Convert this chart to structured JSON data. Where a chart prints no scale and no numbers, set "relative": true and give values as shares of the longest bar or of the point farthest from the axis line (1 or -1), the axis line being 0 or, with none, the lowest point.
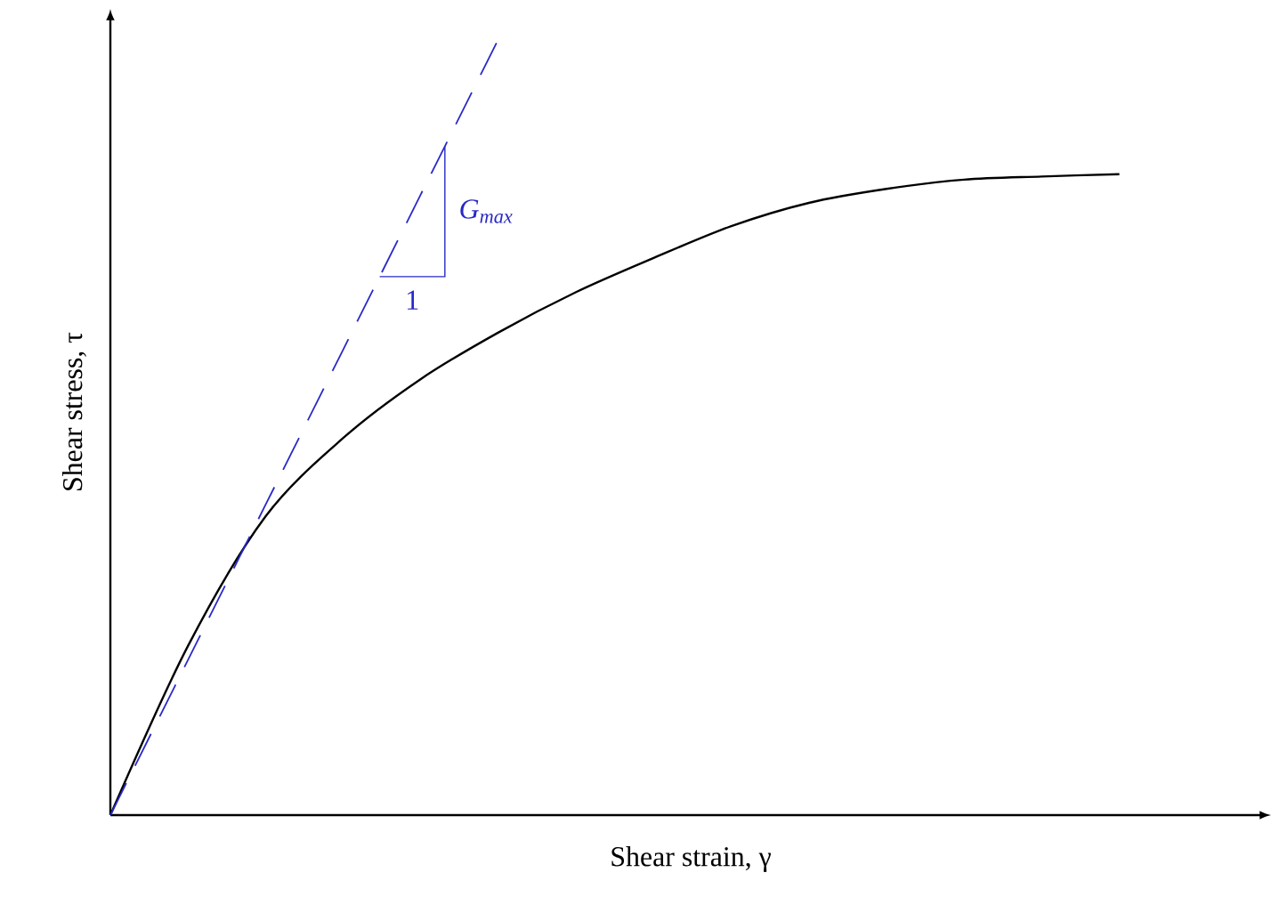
{
  "chart_data": {
    "type": "line",
    "relative": true,
    "xlabel": "Shear strain, γ",
    "ylabel": "Shear stress, τ",
    "marker": "none",
    "categories": [
      null,
      null,
      null,
      null,
      null,
      null,
      null,
      null,
      null,
      null,
      null,
      null,
      null,
      null
    ],
    "series": [
      {
        "color": "#000000",
        "line_style": "solid",
        "values": [
          0,
          0.218,
          0.385,
          0.486,
          0.562,
          0.622,
          0.674,
          0.718,
          0.759,
          0.789,
          0.807,
          0.819,
          0.823,
          0.826
        ]
      },
      {
        "color": "#2828c8",
        "line_style": "dashed",
        "values": [
          0,
          0.2,
          0.4,
          0.6,
          0.8,
          1.0,
          null,
          null,
          null,
          null,
          null,
          null,
          null,
          null
        ]
      }
    ],
    "annotations": [
      "G$_{max}$",
      "1"
    ]
  }
}
